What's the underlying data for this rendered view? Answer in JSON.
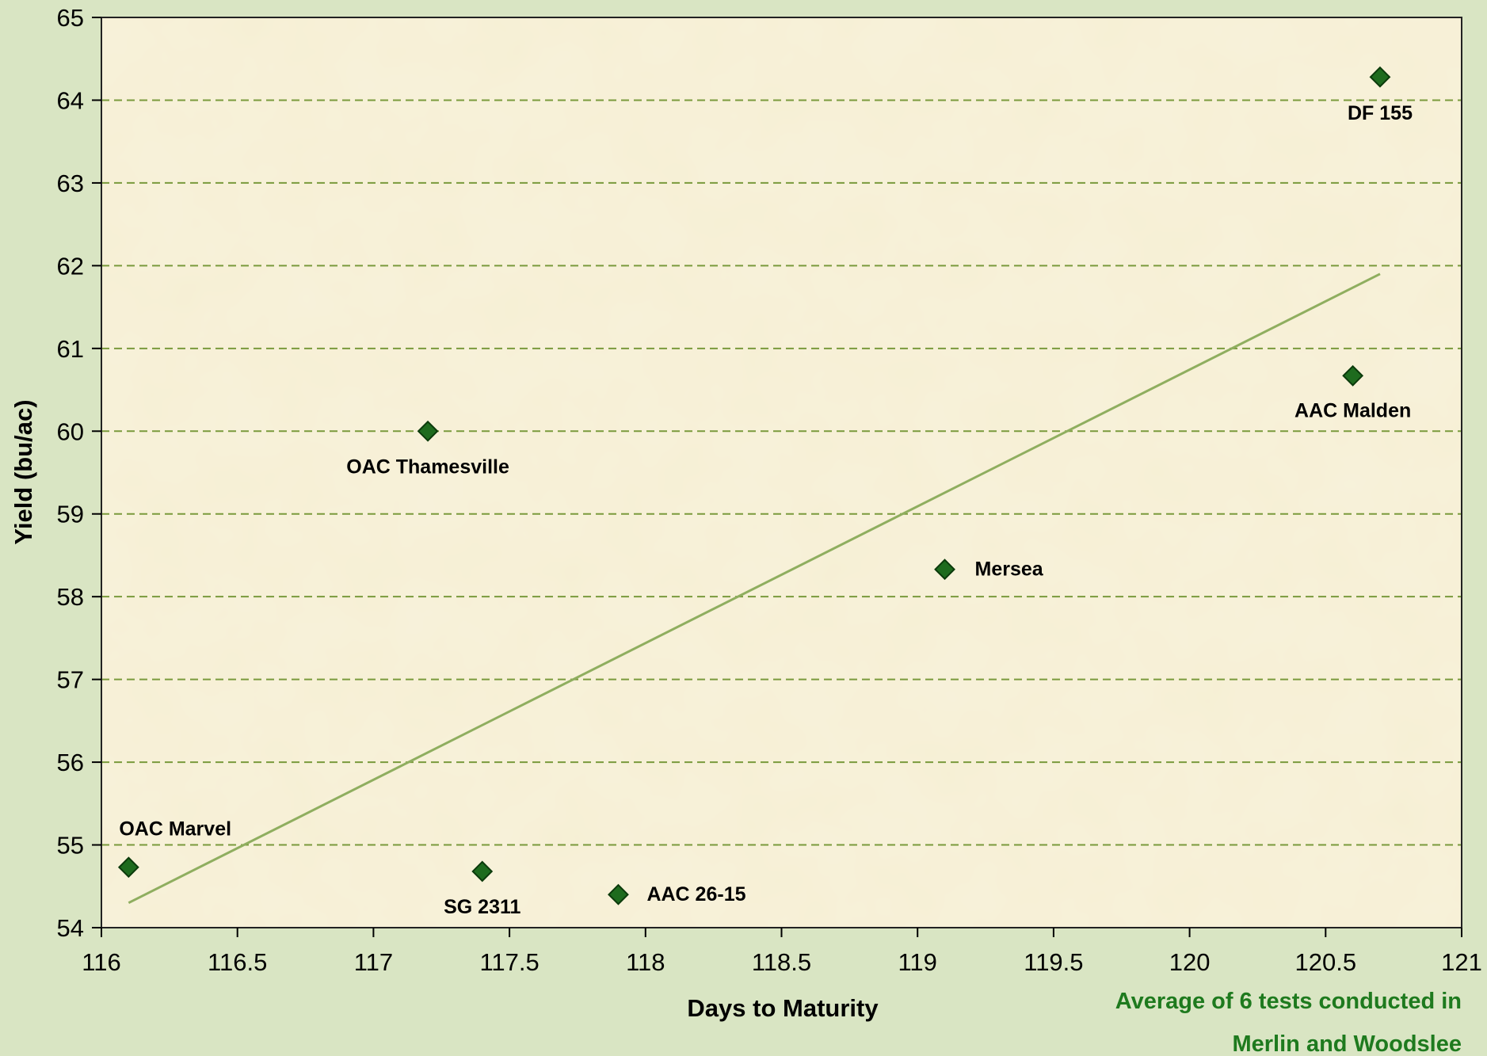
{
  "chart_data": {
    "type": "scatter",
    "xlabel": "Days to Maturity",
    "ylabel": "Yield (bu/ac)",
    "xlim": [
      116,
      121
    ],
    "ylim": [
      54,
      65
    ],
    "x_ticks": [
      "116",
      "116.5",
      "117",
      "117.5",
      "118",
      "118.5",
      "119",
      "119.5",
      "120",
      "120.5",
      "121"
    ],
    "y_ticks": [
      "54",
      "55",
      "56",
      "57",
      "58",
      "59",
      "60",
      "61",
      "62",
      "63",
      "64",
      "65"
    ],
    "grid": "horizontal dashed",
    "points": [
      {
        "label": "OAC Marvel",
        "x": 116.1,
        "y": 54.73
      },
      {
        "label": "OAC Thamesville",
        "x": 117.2,
        "y": 60.0
      },
      {
        "label": "SG 2311",
        "x": 117.4,
        "y": 54.68
      },
      {
        "label": "AAC 26-15",
        "x": 117.9,
        "y": 54.4
      },
      {
        "label": "Mersea",
        "x": 119.1,
        "y": 58.33
      },
      {
        "label": "AAC Malden",
        "x": 120.6,
        "y": 60.67
      },
      {
        "label": "DF 155",
        "x": 120.7,
        "y": 64.28
      }
    ],
    "trendline": {
      "type": "linear",
      "x": [
        116.1,
        120.7
      ],
      "y": [
        54.3,
        61.9
      ]
    },
    "annotation": [
      "Average of 6 tests conducted in",
      "Merlin and Woodslee"
    ],
    "colors": {
      "marker": "#1e6b1e",
      "trend": "#8fae5f",
      "grid": "#7a9a3c",
      "note": "#1e7a1e"
    }
  }
}
